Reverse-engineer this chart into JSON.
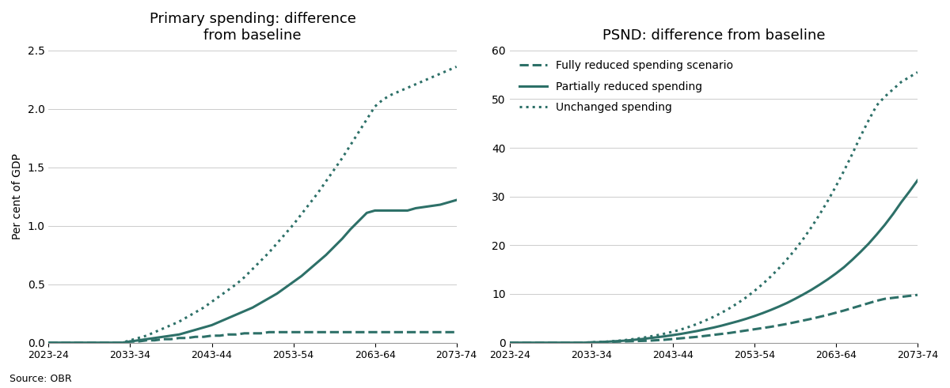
{
  "title_left": "Primary spending: difference\nfrom baseline",
  "title_right": "PSND: difference from baseline",
  "ylabel_left": "Per cent of GDP",
  "source": "Source: OBR",
  "color": "#2d7068",
  "x_labels": [
    "2023-24",
    "2033-34",
    "2043-44",
    "2053-54",
    "2063-64",
    "2073-74"
  ],
  "x_ticks": [
    0,
    10,
    20,
    30,
    40,
    50
  ],
  "n_points": 51,
  "left_ylim": [
    0,
    2.5
  ],
  "left_yticks": [
    0.0,
    0.5,
    1.0,
    1.5,
    2.0,
    2.5
  ],
  "right_ylim": [
    0,
    60
  ],
  "right_yticks": [
    0,
    10,
    20,
    30,
    40,
    50,
    60
  ],
  "legend_labels": [
    "Fully reduced spending scenario",
    "Partially reduced spending",
    "Unchanged spending"
  ],
  "legend_styles": [
    "dashed",
    "solid",
    "dotted"
  ],
  "left_fully_reduced": [
    0,
    0,
    0,
    0,
    0,
    0,
    0,
    0,
    0,
    0,
    0.01,
    0.01,
    0.02,
    0.02,
    0.03,
    0.03,
    0.04,
    0.04,
    0.05,
    0.05,
    0.06,
    0.06,
    0.07,
    0.07,
    0.08,
    0.08,
    0.08,
    0.09,
    0.09,
    0.09,
    0.09,
    0.09,
    0.09,
    0.09,
    0.09,
    0.09,
    0.09,
    0.09,
    0.09,
    0.09,
    0.09,
    0.09,
    0.09,
    0.09,
    0.09,
    0.09,
    0.09,
    0.09,
    0.09,
    0.09,
    0.09
  ],
  "left_partially_reduced": [
    0,
    0,
    0,
    0,
    0,
    0,
    0,
    0,
    0,
    0,
    0.01,
    0.02,
    0.03,
    0.04,
    0.05,
    0.06,
    0.07,
    0.09,
    0.11,
    0.13,
    0.15,
    0.18,
    0.21,
    0.24,
    0.27,
    0.3,
    0.34,
    0.38,
    0.42,
    0.47,
    0.52,
    0.57,
    0.63,
    0.69,
    0.75,
    0.82,
    0.89,
    0.97,
    1.04,
    1.11,
    1.13,
    1.13,
    1.13,
    1.13,
    1.13,
    1.15,
    1.16,
    1.17,
    1.18,
    1.2,
    1.22
  ],
  "left_unchanged": [
    0,
    0,
    0,
    0,
    0,
    0,
    0,
    0,
    0,
    0,
    0.02,
    0.04,
    0.06,
    0.09,
    0.12,
    0.15,
    0.18,
    0.22,
    0.26,
    0.3,
    0.35,
    0.4,
    0.45,
    0.5,
    0.56,
    0.63,
    0.7,
    0.77,
    0.85,
    0.93,
    1.01,
    1.1,
    1.19,
    1.28,
    1.38,
    1.48,
    1.58,
    1.69,
    1.8,
    1.91,
    2.02,
    2.08,
    2.12,
    2.15,
    2.18,
    2.21,
    2.24,
    2.27,
    2.3,
    2.33,
    2.36
  ],
  "right_fully_reduced": [
    0,
    0,
    0,
    0,
    0,
    0,
    0,
    0,
    0,
    0,
    0.05,
    0.1,
    0.15,
    0.2,
    0.25,
    0.3,
    0.35,
    0.4,
    0.5,
    0.6,
    0.75,
    0.9,
    1.05,
    1.2,
    1.4,
    1.6,
    1.8,
    2.0,
    2.25,
    2.5,
    2.75,
    3.0,
    3.25,
    3.55,
    3.85,
    4.2,
    4.55,
    4.9,
    5.3,
    5.7,
    6.15,
    6.6,
    7.1,
    7.6,
    8.1,
    8.6,
    9.0,
    9.2,
    9.4,
    9.6,
    9.8
  ],
  "right_partially_reduced": [
    0,
    0,
    0,
    0,
    0,
    0,
    0,
    0,
    0,
    0,
    0.05,
    0.1,
    0.2,
    0.3,
    0.4,
    0.55,
    0.7,
    0.9,
    1.1,
    1.3,
    1.55,
    1.8,
    2.1,
    2.4,
    2.75,
    3.1,
    3.5,
    3.95,
    4.4,
    4.9,
    5.45,
    6.05,
    6.7,
    7.4,
    8.15,
    9.0,
    9.9,
    10.85,
    11.9,
    13.0,
    14.2,
    15.5,
    17.0,
    18.6,
    20.3,
    22.2,
    24.2,
    26.4,
    28.8,
    31.0,
    33.3
  ],
  "right_unchanged": [
    0,
    0,
    0,
    0,
    0,
    0,
    0,
    0,
    0,
    0,
    0.05,
    0.12,
    0.22,
    0.35,
    0.5,
    0.7,
    0.92,
    1.2,
    1.5,
    1.85,
    2.25,
    2.7,
    3.25,
    3.85,
    4.55,
    5.3,
    6.15,
    7.1,
    8.15,
    9.3,
    10.6,
    12.0,
    13.55,
    15.25,
    17.1,
    19.1,
    21.3,
    23.7,
    26.3,
    29.1,
    32.1,
    35.3,
    38.7,
    42.3,
    45.6,
    48.7,
    50.5,
    52.0,
    53.5,
    54.5,
    55.5
  ]
}
